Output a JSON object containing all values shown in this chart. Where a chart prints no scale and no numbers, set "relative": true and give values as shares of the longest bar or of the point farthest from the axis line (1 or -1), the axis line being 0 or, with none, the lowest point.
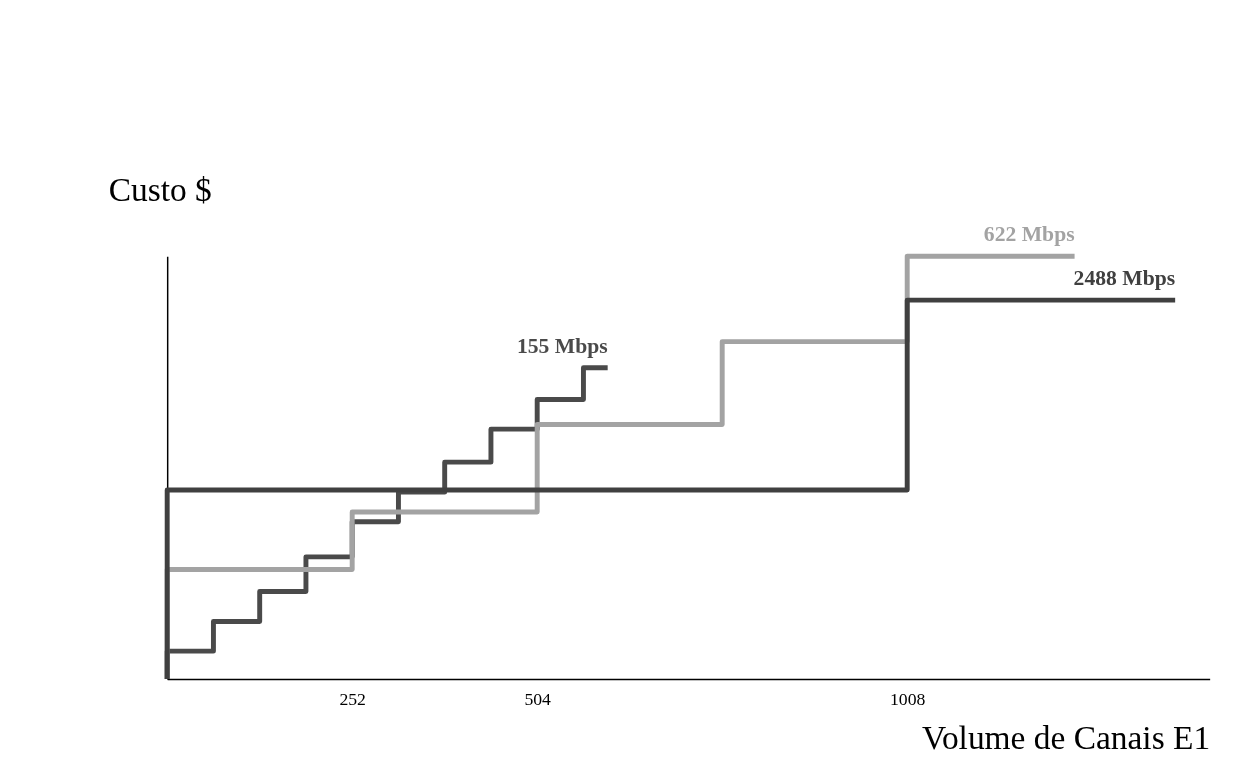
{
  "chart_data": {
    "type": "step",
    "relative": true,
    "xlabel": "Volume de Canais E1",
    "ylabel": "Custo $",
    "xlim": [
      0,
      1420
    ],
    "xticks": [
      252,
      504,
      1008
    ],
    "tick_labels": "x",
    "grid": false,
    "series": [
      {
        "name": "155 Mbps",
        "color": "#4a4a4a",
        "x": [
          0,
          0,
          63,
          126,
          189,
          252,
          315,
          378,
          441,
          504,
          567,
          600
        ],
        "values": [
          0,
          0.066,
          0.136,
          0.207,
          0.289,
          0.372,
          0.442,
          0.513,
          0.591,
          0.661,
          0.736,
          0.736
        ]
      },
      {
        "name": "622 Mbps",
        "color": "#a3a3a3",
        "x": [
          0,
          0,
          252,
          504,
          756,
          1008,
          1236
        ],
        "values": [
          0,
          0.259,
          0.395,
          0.602,
          0.798,
          1.0,
          1.0
        ]
      },
      {
        "name": "2488 Mbps",
        "color": "#404040",
        "x": [
          0,
          0,
          1008,
          1373
        ],
        "values": [
          0,
          0.447,
          0.896,
          0.896
        ]
      }
    ]
  }
}
